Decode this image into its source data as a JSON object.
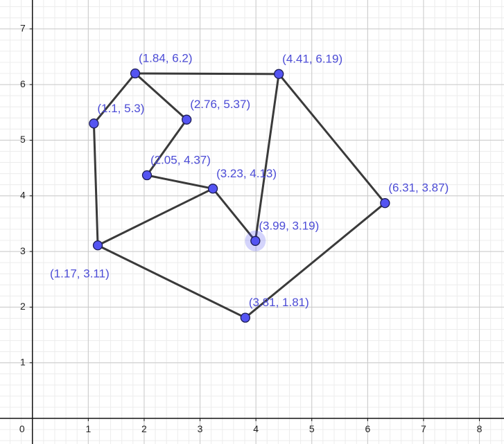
{
  "chart_data": {
    "type": "polygon-graph",
    "x": [
      1.84,
      4.41,
      1.1,
      2.76,
      2.05,
      3.23,
      6.31,
      3.99,
      1.17,
      3.81
    ],
    "y": [
      6.2,
      6.19,
      5.3,
      5.37,
      4.37,
      4.13,
      3.87,
      3.19,
      3.11,
      1.81
    ],
    "value_labels": [
      "(1.84, 6.2)",
      "(4.41, 6.19)",
      "(1.1, 5.3)",
      "(2.76, 5.37)",
      "(2.05, 4.37)",
      "(3.23, 4.13)",
      "(6.31, 3.87)",
      "(3.99, 3.19)",
      "(1.17, 3.11)",
      "(3.81, 1.81)"
    ],
    "segments": [
      [
        0,
        1
      ],
      [
        0,
        2
      ],
      [
        0,
        3
      ],
      [
        3,
        4
      ],
      [
        4,
        5
      ],
      [
        5,
        7
      ],
      [
        7,
        1
      ],
      [
        1,
        6
      ],
      [
        6,
        9
      ],
      [
        9,
        8
      ],
      [
        8,
        5
      ],
      [
        8,
        2
      ]
    ],
    "xlim": [
      -0.58,
      8.44
    ],
    "ylim": [
      -0.46,
      7.52
    ],
    "xticks": [
      0,
      1,
      2,
      3,
      4,
      5,
      6,
      7,
      8
    ],
    "yticks": [
      1,
      2,
      3,
      4,
      5,
      6,
      7
    ],
    "grid": true,
    "color": "#5454f2",
    "label_color": "#4c4cd6",
    "line_color": "#3a3a3a"
  }
}
